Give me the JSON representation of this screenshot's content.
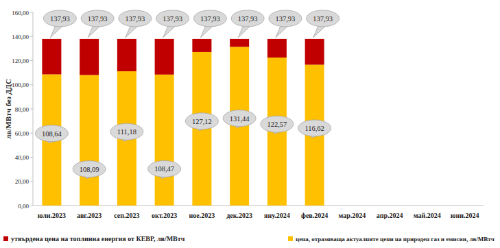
{
  "chart_data": {
    "type": "bar",
    "stacked": true,
    "data_labels": true,
    "grid": false,
    "legend": "bottom",
    "y_label": "лв/МВтч без ДДС",
    "categories": [
      "юли.2023",
      "авг.2023",
      "сеп.2023",
      "окт.2023",
      "ное.2023",
      "дек.2023",
      "яну.2024",
      "фев.2024",
      "мар.2024",
      "апр.2024",
      "май.2024",
      "юни.2024"
    ],
    "series": [
      {
        "name": "цена, отразяваща актуалните  цени на природен газ и емисии, лв/МВтч",
        "color": "#ffc000",
        "values": [
          108.64,
          108.09,
          111.18,
          108.47,
          127.12,
          131.44,
          122.57,
          116.62,
          null,
          null,
          null,
          null
        ],
        "value_labels": [
          "108,64",
          "108,09",
          "111,18",
          "108,47",
          "127,12",
          "131,44",
          "122,57",
          "116,62",
          null,
          null,
          null,
          null
        ]
      },
      {
        "name": "утвърдена цена на топлинна енергия от КЕВР, лв/МВтч",
        "color": "#c00000",
        "values": [
          29.29,
          29.84,
          26.75,
          29.46,
          10.81,
          6.49,
          15.36,
          21.31,
          null,
          null,
          null,
          null
        ]
      }
    ],
    "totals": [
      137.93,
      137.93,
      137.93,
      137.93,
      137.93,
      137.93,
      137.93,
      137.93,
      null,
      null,
      null,
      null
    ],
    "total_labels": [
      "137,93",
      "137,93",
      "137,93",
      "137,93",
      "137,93",
      "137,93",
      "137,93",
      "137,93",
      null,
      null,
      null,
      null
    ],
    "ylim": [
      0,
      160
    ],
    "yticks": [
      {
        "value": 0,
        "label": "0,00"
      },
      {
        "value": 20,
        "label": "20,00"
      },
      {
        "value": 40,
        "label": "40,00"
      },
      {
        "value": 60,
        "label": "60,00"
      },
      {
        "value": 80,
        "label": "80,00"
      },
      {
        "value": 100,
        "label": "100,00"
      },
      {
        "value": 120,
        "label": "120,00"
      },
      {
        "value": 140,
        "label": "140,00"
      },
      {
        "value": 160,
        "label": "160,00"
      }
    ]
  }
}
